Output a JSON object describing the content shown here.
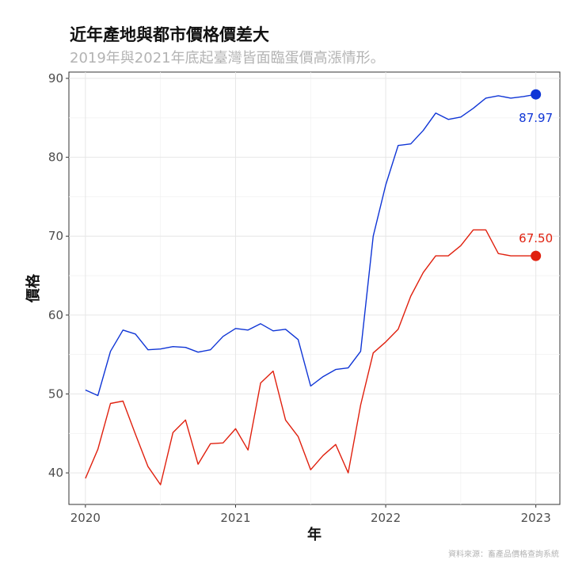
{
  "chart_data": {
    "type": "line",
    "title": "近年產地與都市價格價差大",
    "subtitle": "2019年與2021年底起臺灣皆面臨蛋價高漲情形。",
    "xlabel": "年",
    "ylabel": "價格",
    "caption": "資料來源：畜產品價格查詢系統",
    "xlim": [
      2019.89,
      2023.16
    ],
    "ylim": [
      36.0,
      90.8
    ],
    "x_ticks": [
      2020,
      2021,
      2022,
      2023
    ],
    "x_tick_labels": [
      "2020",
      "2021",
      "2022",
      "2023"
    ],
    "y_ticks": [
      40,
      50,
      60,
      70,
      80,
      90
    ],
    "y_tick_labels": [
      "40",
      "50",
      "60",
      "70",
      "80",
      "90"
    ],
    "grid": true,
    "legend": "none",
    "x": [
      2020.0,
      2020.083,
      2020.167,
      2020.25,
      2020.333,
      2020.417,
      2020.5,
      2020.583,
      2020.667,
      2020.75,
      2020.833,
      2020.917,
      2021.0,
      2021.083,
      2021.167,
      2021.25,
      2021.333,
      2021.417,
      2021.5,
      2021.583,
      2021.667,
      2021.75,
      2021.833,
      2021.917,
      2022.0,
      2022.083,
      2022.167,
      2022.25,
      2022.333,
      2022.417,
      2022.5,
      2022.583,
      2022.667,
      2022.75,
      2022.833,
      2022.917,
      2023.0
    ],
    "series": [
      {
        "color": "#0f35d6",
        "values": [
          50.5,
          49.8,
          55.4,
          58.1,
          57.6,
          55.6,
          55.7,
          56.0,
          55.9,
          55.3,
          55.6,
          57.3,
          58.3,
          58.1,
          58.9,
          58.0,
          58.2,
          56.9,
          51.0,
          52.2,
          53.1,
          53.3,
          55.4,
          70.0,
          76.5,
          81.5,
          81.7,
          83.4,
          85.6,
          84.8,
          85.1,
          86.2,
          87.5,
          87.8,
          87.5,
          87.7,
          87.97
        ],
        "end_label": "87.97"
      },
      {
        "color": "#e0200e",
        "values": [
          39.3,
          43.0,
          48.8,
          49.1,
          44.9,
          40.8,
          38.5,
          45.1,
          46.7,
          41.1,
          43.7,
          43.8,
          45.6,
          42.9,
          51.4,
          52.9,
          46.7,
          44.6,
          40.4,
          42.2,
          43.6,
          40.0,
          48.6,
          55.2,
          56.6,
          58.2,
          62.4,
          65.4,
          67.5,
          67.5,
          68.8,
          70.8,
          70.8,
          67.8,
          67.5,
          67.5,
          67.5
        ],
        "end_label": "67.50"
      }
    ]
  }
}
